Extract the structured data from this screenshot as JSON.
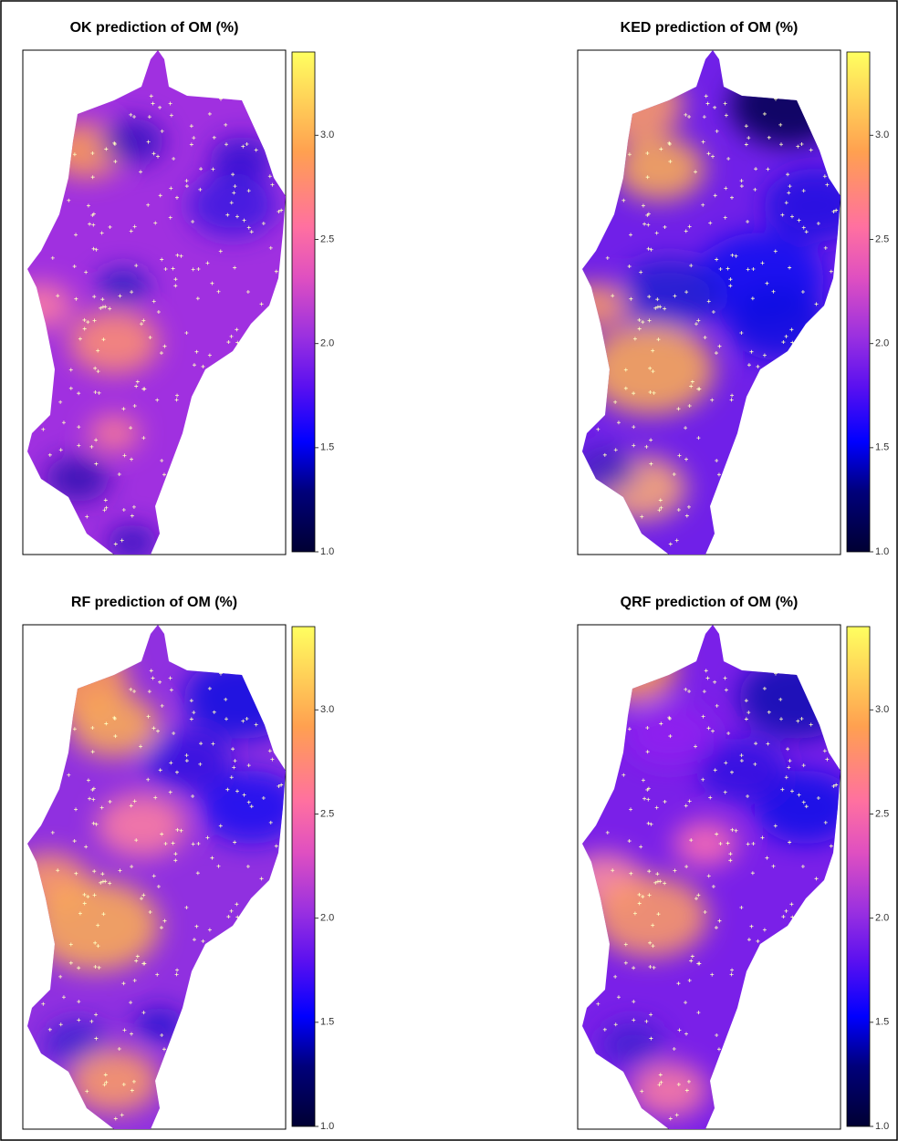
{
  "panels": [
    {
      "title": "OK prediction of OM (%)",
      "colorbar": {
        "lim": [
          1,
          3.4
        ],
        "ticks": [
          {
            "value": 1,
            "label": "1.0"
          },
          1.5,
          {
            "value": 2,
            "label": "2.0"
          },
          2.5,
          {
            "value": 3,
            "label": "3.0"
          }
        ]
      }
    },
    {
      "title": "KED prediction of OM (%)",
      "colorbar": {
        "lim": [
          1,
          3.4
        ],
        "ticks": [
          {
            "value": 1,
            "label": "1.0"
          },
          1.5,
          {
            "value": 2,
            "label": "2.0"
          },
          2.5,
          {
            "value": 3,
            "label": "3.0"
          }
        ]
      }
    },
    {
      "title": "RF prediction of OM (%)",
      "colorbar": {
        "lim": [
          1,
          3.4
        ],
        "ticks": [
          {
            "value": 1,
            "label": "1.0"
          },
          1.5,
          {
            "value": 2,
            "label": "2.0"
          },
          2.5,
          {
            "value": 3,
            "label": "3.0"
          }
        ]
      }
    },
    {
      "title": "QRF prediction of OM (%)",
      "colorbar": {
        "lim": [
          1,
          3.4
        ],
        "ticks": [
          {
            "value": 1,
            "label": "1.0"
          },
          1.5,
          {
            "value": 2,
            "label": "2.0"
          },
          2.5,
          {
            "value": 3,
            "label": "3.0"
          }
        ]
      }
    }
  ]
}
